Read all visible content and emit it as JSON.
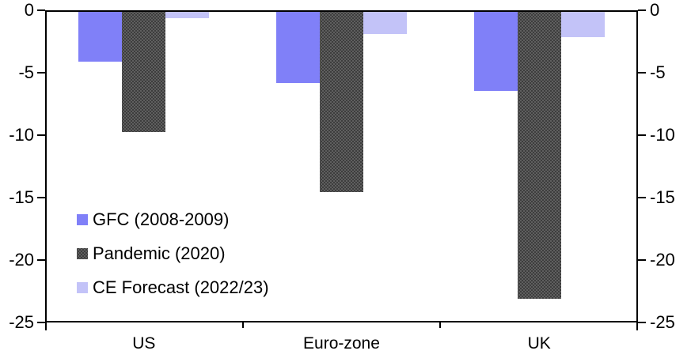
{
  "chart_data": {
    "type": "bar",
    "title": "",
    "categories": [
      "US",
      "Euro-zone",
      "UK"
    ],
    "series": [
      {
        "name": "GFC (2008-2009)",
        "color": "#8080f8",
        "pattern": "solid",
        "values": [
          -4.0,
          -5.7,
          -6.3
        ]
      },
      {
        "name": "Pandemic (2020)",
        "color": "#3d3d3d",
        "pattern": "dots",
        "values": [
          -9.6,
          -14.4,
          -23.0
        ]
      },
      {
        "name": "CE Forecast (2022/23)",
        "color": "#c3c3f8",
        "pattern": "solid",
        "values": [
          -0.5,
          -1.8,
          -2.0
        ]
      }
    ],
    "ylim": [
      -25,
      0
    ],
    "ytick_labels": [
      "0",
      "-5",
      "-10",
      "-15",
      "-20",
      "-25"
    ],
    "yticks": [
      0,
      -5,
      -10,
      -15,
      -20,
      -25
    ],
    "dual_axis": true,
    "grid": false,
    "legend_position": "inside-bottom-left",
    "axis_color": "#000000",
    "background_color": "#ffffff"
  }
}
